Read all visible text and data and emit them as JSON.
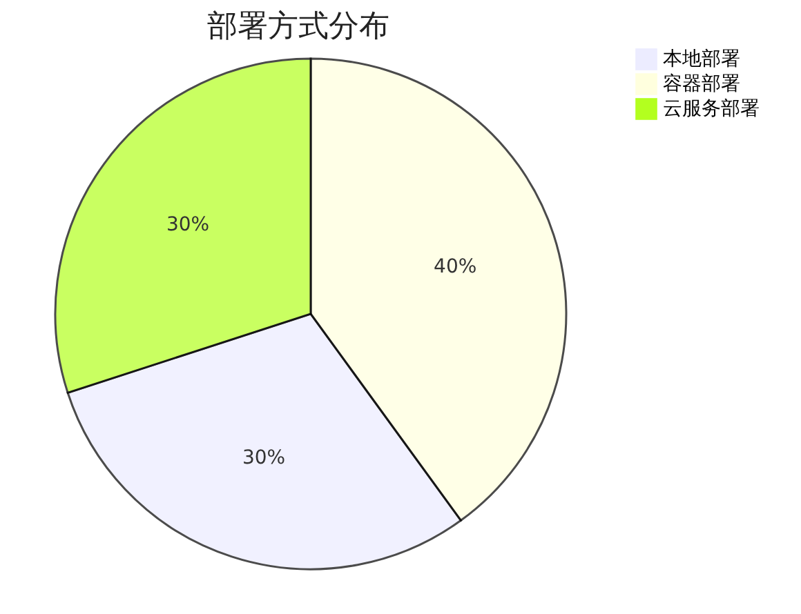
{
  "chart_data": {
    "type": "pie",
    "title": "部署方式分布",
    "categories": [
      "本地部署",
      "容器部署",
      "云服务部署"
    ],
    "values": [
      30,
      40,
      30
    ],
    "colors": [
      "#ececff",
      "#ffffde",
      "#b3ff1f"
    ],
    "value_labels": [
      "30%",
      "40%",
      "30%"
    ],
    "legend": "right"
  }
}
